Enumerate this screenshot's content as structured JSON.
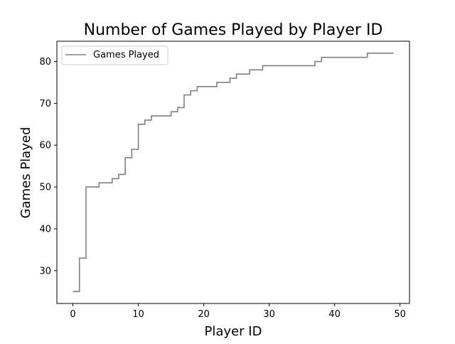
{
  "chart_data": {
    "type": "line",
    "drawstyle": "steps-post",
    "title": "Number of Games Played by Player ID",
    "xlabel": "Player ID",
    "ylabel": "Games Played",
    "xlim": [
      -2.45,
      51.45
    ],
    "ylim": [
      22.15,
      84.85
    ],
    "xticks": [
      0,
      10,
      20,
      30,
      40,
      50
    ],
    "yticks": [
      30,
      40,
      50,
      60,
      70,
      80
    ],
    "grid": false,
    "legend_position": "top-left",
    "series": [
      {
        "name": "Games Played",
        "color": "#808080",
        "x": [
          0,
          1,
          2,
          3,
          4,
          5,
          6,
          7,
          8,
          9,
          10,
          11,
          12,
          13,
          14,
          15,
          16,
          17,
          18,
          19,
          20,
          21,
          22,
          23,
          24,
          25,
          26,
          27,
          28,
          29,
          30,
          31,
          32,
          33,
          34,
          35,
          36,
          37,
          38,
          39,
          40,
          41,
          42,
          43,
          44,
          45,
          46,
          47,
          48,
          49
        ],
        "y": [
          25,
          33,
          50,
          50,
          51,
          51,
          52,
          53,
          57,
          59,
          65,
          66,
          67,
          67,
          67,
          68,
          69,
          72,
          73,
          74,
          74,
          74,
          75,
          75,
          76,
          77,
          77,
          78,
          78,
          79,
          79,
          79,
          79,
          79,
          79,
          79,
          79,
          80,
          81,
          81,
          81,
          81,
          81,
          81,
          81,
          82,
          82,
          82,
          82,
          82
        ]
      }
    ]
  }
}
